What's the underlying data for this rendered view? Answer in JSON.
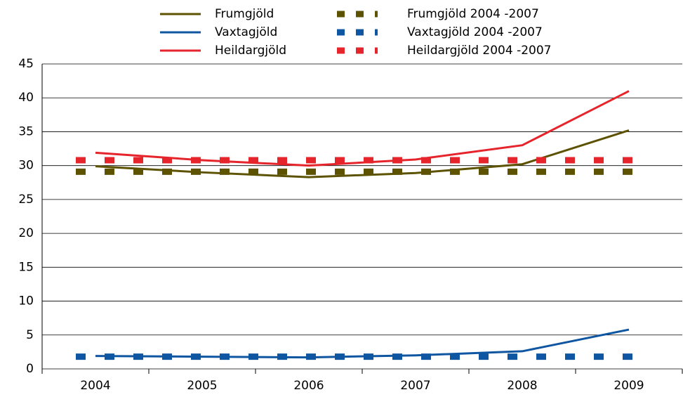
{
  "chart_data": {
    "type": "line",
    "categories": [
      "2004",
      "2005",
      "2006",
      "2007",
      "2008",
      "2009"
    ],
    "series": [
      {
        "name": "Frumgjöld",
        "color": "#5c5200",
        "dashed": false,
        "values": [
          29.9,
          29.0,
          28.3,
          28.9,
          30.2,
          35.2
        ]
      },
      {
        "name": "Vaxtagjöld",
        "color": "#0f56a2",
        "dashed": false,
        "values": [
          1.9,
          1.8,
          1.7,
          2.0,
          2.6,
          5.8
        ]
      },
      {
        "name": "Heildargjöld",
        "color": "#e6242c",
        "dashed": false,
        "values": [
          31.9,
          30.8,
          30.0,
          30.9,
          33.0,
          41.0
        ]
      },
      {
        "name": "Frumgjöld  2004 -2007",
        "color": "#5c5200",
        "dashed": true,
        "values": [
          29.1,
          29.1,
          29.1,
          29.1,
          29.1,
          29.1
        ]
      },
      {
        "name": "Vaxtagjöld  2004 -2007",
        "color": "#0f56a2",
        "dashed": true,
        "values": [
          1.8,
          1.8,
          1.8,
          1.8,
          1.8,
          1.8
        ]
      },
      {
        "name": "Heildargjöld  2004 -2007",
        "color": "#e6242c",
        "dashed": true,
        "values": [
          30.8,
          30.8,
          30.8,
          30.8,
          30.8,
          30.8
        ]
      }
    ],
    "ylim": [
      0,
      45
    ],
    "yticks": [
      0,
      5,
      10,
      15,
      20,
      25,
      30,
      35,
      40,
      45
    ],
    "grid": true
  }
}
